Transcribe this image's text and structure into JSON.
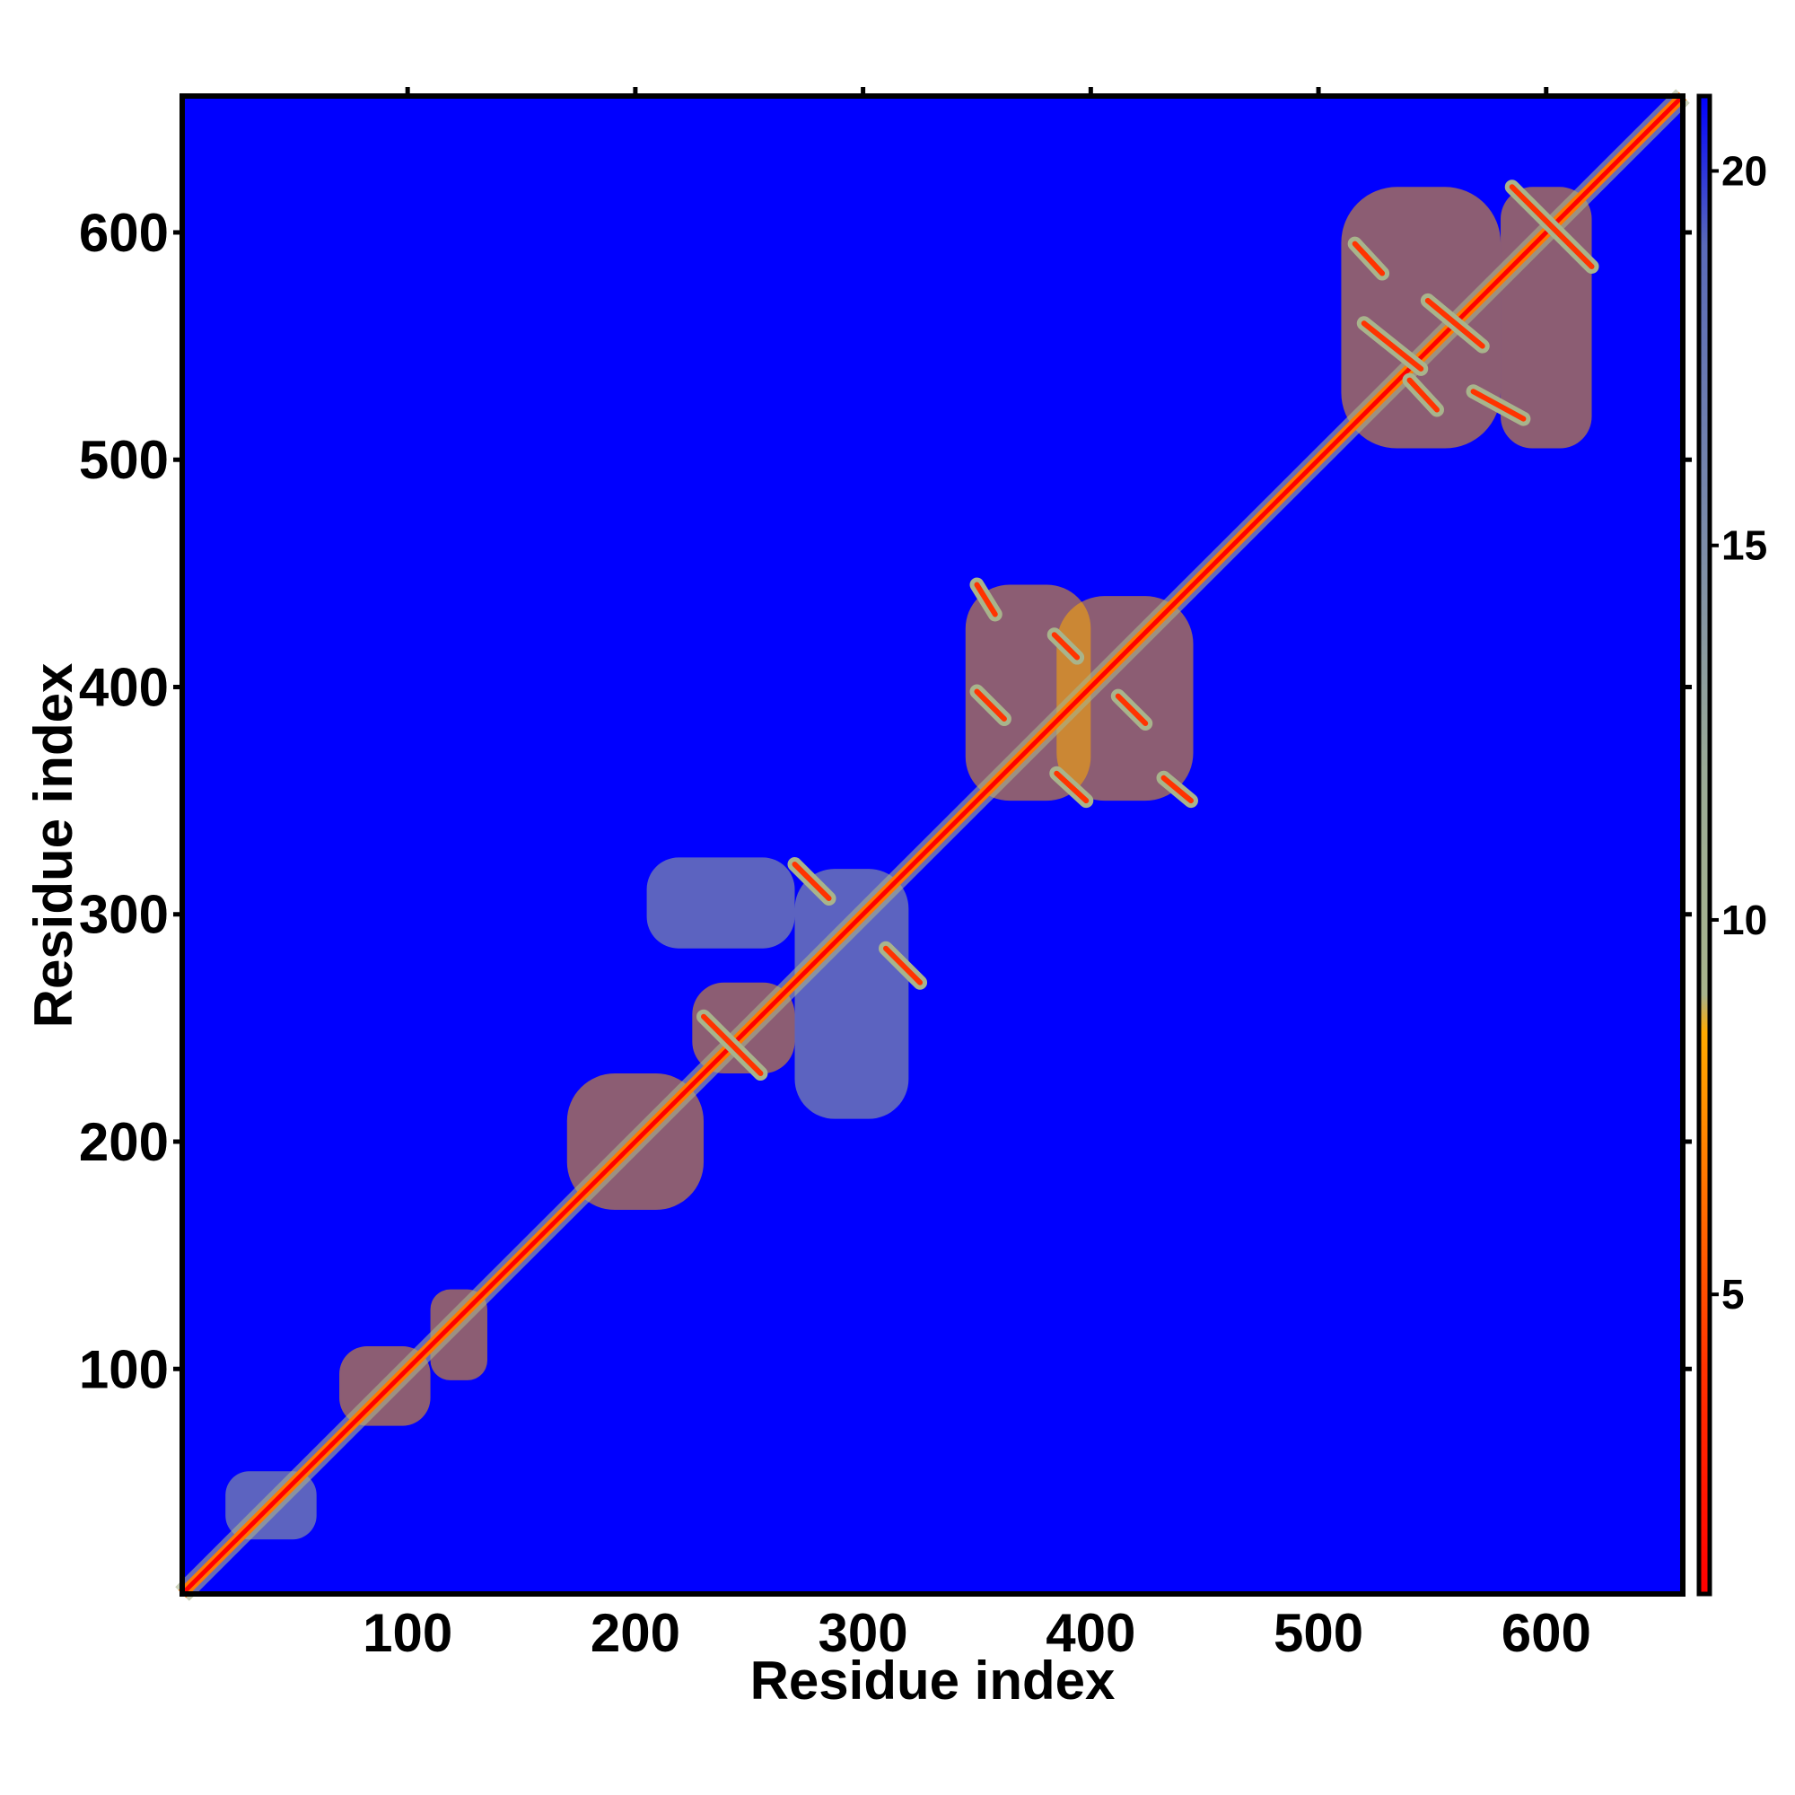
{
  "chart_data": {
    "type": "heatmap",
    "title": "",
    "xlabel": "Residue index",
    "ylabel": "Residue index",
    "xlim": [
      1,
      660
    ],
    "ylim": [
      1,
      660
    ],
    "x_ticks": [
      100,
      200,
      300,
      400,
      500,
      600
    ],
    "y_ticks": [
      100,
      200,
      300,
      400,
      500,
      600
    ],
    "background_value": 21,
    "colorbar": {
      "range": [
        1,
        21
      ],
      "ticks": [
        5,
        10,
        15,
        20
      ],
      "stops": [
        {
          "value": 1,
          "color": "#ff0000"
        },
        {
          "value": 4,
          "color": "#ff3300"
        },
        {
          "value": 8.5,
          "color": "#ffaa00"
        },
        {
          "value": 9,
          "color": "#a8b48c"
        },
        {
          "value": 12,
          "color": "#9aaa96"
        },
        {
          "value": 15,
          "color": "#7c8ca8"
        },
        {
          "value": 19,
          "color": "#5a6ab8"
        },
        {
          "value": 21,
          "color": "#0000ff"
        }
      ]
    },
    "diagonal": {
      "from": 1,
      "to": 660,
      "value": 2
    },
    "contact_regions": [
      {
        "x": [
          20,
          60
        ],
        "y": [
          25,
          55
        ],
        "value": 10
      },
      {
        "x": [
          70,
          110
        ],
        "y": [
          75,
          110
        ],
        "value": 9
      },
      {
        "x": [
          110,
          135
        ],
        "y": [
          95,
          135
        ],
        "value": 9
      },
      {
        "x": [
          170,
          230
        ],
        "y": [
          170,
          230
        ],
        "value": 9
      },
      {
        "x": [
          225,
          270
        ],
        "y": [
          230,
          270
        ],
        "value": 9
      },
      {
        "x": [
          270,
          320
        ],
        "y": [
          210,
          320
        ],
        "value": 11
      },
      {
        "x": [
          205,
          270
        ],
        "y": [
          285,
          325
        ],
        "value": 11
      },
      {
        "x": [
          345,
          400
        ],
        "y": [
          350,
          445
        ],
        "value": 9
      },
      {
        "x": [
          385,
          445
        ],
        "y": [
          350,
          440
        ],
        "value": 9
      },
      {
        "x": [
          510,
          580
        ],
        "y": [
          505,
          620
        ],
        "value": 9
      },
      {
        "x": [
          580,
          620
        ],
        "y": [
          505,
          620
        ],
        "value": 9
      }
    ],
    "antiparallel_strands": [
      {
        "x": [
          270,
          285
        ],
        "y": [
          322,
          307
        ],
        "value": 5
      },
      {
        "x": [
          310,
          325
        ],
        "y": [
          285,
          270
        ],
        "value": 5
      },
      {
        "x": [
          230,
          255
        ],
        "y": [
          255,
          230
        ],
        "value": 5
      },
      {
        "x": [
          350,
          358
        ],
        "y": [
          445,
          432
        ],
        "value": 5
      },
      {
        "x": [
          384,
          394
        ],
        "y": [
          423,
          413
        ],
        "value": 5
      },
      {
        "x": [
          350,
          362
        ],
        "y": [
          398,
          386
        ],
        "value": 5
      },
      {
        "x": [
          385,
          398
        ],
        "y": [
          362,
          350
        ],
        "value": 5
      },
      {
        "x": [
          412,
          424
        ],
        "y": [
          396,
          384
        ],
        "value": 5
      },
      {
        "x": [
          432,
          444
        ],
        "y": [
          360,
          350
        ],
        "value": 5
      },
      {
        "x": [
          516,
          528
        ],
        "y": [
          595,
          582
        ],
        "value": 5
      },
      {
        "x": [
          585,
          620
        ],
        "y": [
          620,
          585
        ],
        "value": 5
      },
      {
        "x": [
          548,
          572
        ],
        "y": [
          570,
          550
        ],
        "value": 5
      },
      {
        "x": [
          520,
          545
        ],
        "y": [
          560,
          540
        ],
        "value": 5
      },
      {
        "x": [
          540,
          552
        ],
        "y": [
          535,
          522
        ],
        "value": 5
      },
      {
        "x": [
          568,
          590
        ],
        "y": [
          530,
          518
        ],
        "value": 5
      }
    ]
  }
}
